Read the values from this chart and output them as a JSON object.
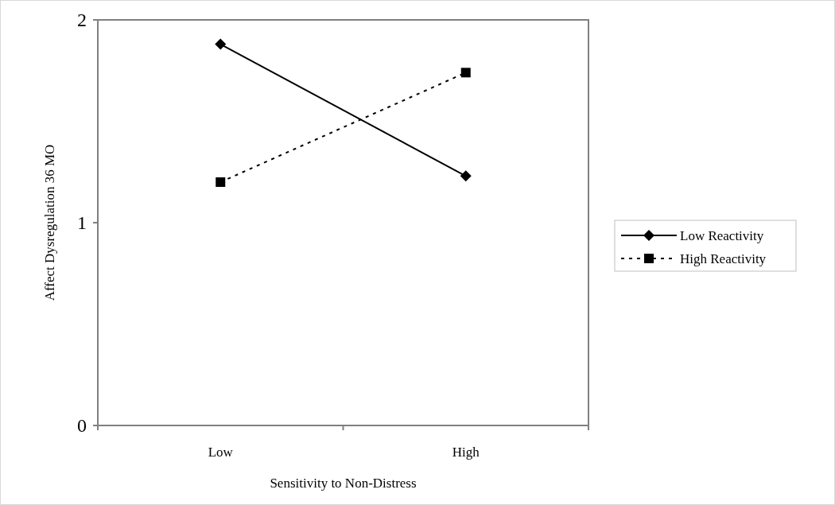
{
  "chart_data": {
    "type": "line",
    "xlabel": "Sensitivity to Non-Distress",
    "ylabel": "Affect Dysregulation 36 MO",
    "categories": [
      "Low",
      "High"
    ],
    "series": [
      {
        "name": "Low Reactivity",
        "color": "#000000",
        "values": [
          1.88,
          1.23
        ],
        "marker": "diamond",
        "line_style": "solid"
      },
      {
        "name": "High Reactivity",
        "color": "#000000",
        "values": [
          1.2,
          1.74
        ],
        "marker": "square",
        "line_style": "dotted"
      }
    ],
    "ylim": [
      0,
      2
    ],
    "yticks": [
      0,
      1,
      2
    ],
    "legend": "right",
    "grid": false
  }
}
